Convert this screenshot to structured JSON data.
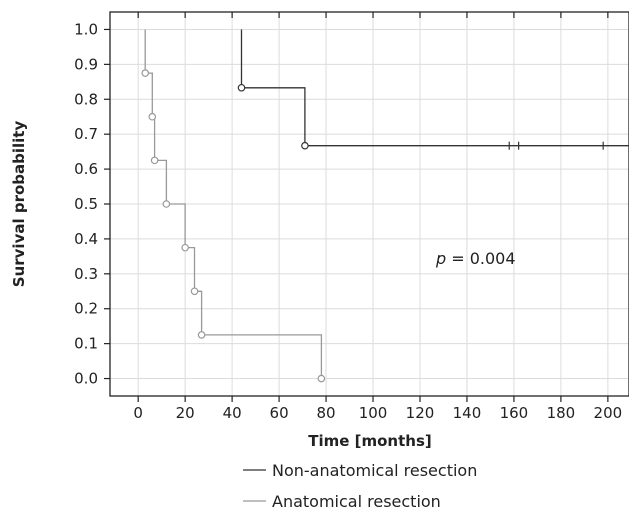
{
  "chart_data": {
    "type": "line",
    "xlabel": "Time [months]",
    "ylabel": "Survival probability",
    "xlim": [
      -12,
      209
    ],
    "ylim": [
      -0.05,
      1.05
    ],
    "xticks": [
      0,
      20,
      40,
      60,
      80,
      100,
      120,
      140,
      160,
      180,
      200
    ],
    "yticks": [
      0.0,
      0.1,
      0.2,
      0.3,
      0.4,
      0.5,
      0.6,
      0.7,
      0.8,
      0.9,
      1.0
    ],
    "grid": true,
    "legend_position": "bottom",
    "annotation": {
      "italic": "p",
      "text": " = 0.004",
      "x": 126,
      "y": 0.35
    },
    "series": [
      {
        "name": "Non-anatomical resection",
        "color": "#333333",
        "step": [
          [
            44,
            1.0
          ],
          [
            44,
            0.833
          ],
          [
            71,
            0.833
          ],
          [
            71,
            0.667
          ],
          [
            209,
            0.667
          ]
        ],
        "events": [
          [
            44,
            0.833
          ],
          [
            71,
            0.667
          ]
        ],
        "censored": [
          [
            158,
            0.667
          ],
          [
            162,
            0.667
          ],
          [
            198,
            0.667
          ]
        ]
      },
      {
        "name": "Anatomical resection",
        "color": "#999999",
        "step": [
          [
            3,
            1.0
          ],
          [
            3,
            0.875
          ],
          [
            6,
            0.875
          ],
          [
            6,
            0.75
          ],
          [
            7,
            0.75
          ],
          [
            7,
            0.625
          ],
          [
            12,
            0.625
          ],
          [
            12,
            0.5
          ],
          [
            20,
            0.5
          ],
          [
            20,
            0.375
          ],
          [
            24,
            0.375
          ],
          [
            24,
            0.25
          ],
          [
            27,
            0.25
          ],
          [
            27,
            0.125
          ],
          [
            78,
            0.125
          ],
          [
            78,
            0.0
          ]
        ],
        "events": [
          [
            3,
            0.875
          ],
          [
            6,
            0.75
          ],
          [
            7,
            0.625
          ],
          [
            12,
            0.5
          ],
          [
            20,
            0.375
          ],
          [
            24,
            0.25
          ],
          [
            27,
            0.125
          ],
          [
            78,
            0.0
          ]
        ],
        "censored": []
      }
    ]
  }
}
